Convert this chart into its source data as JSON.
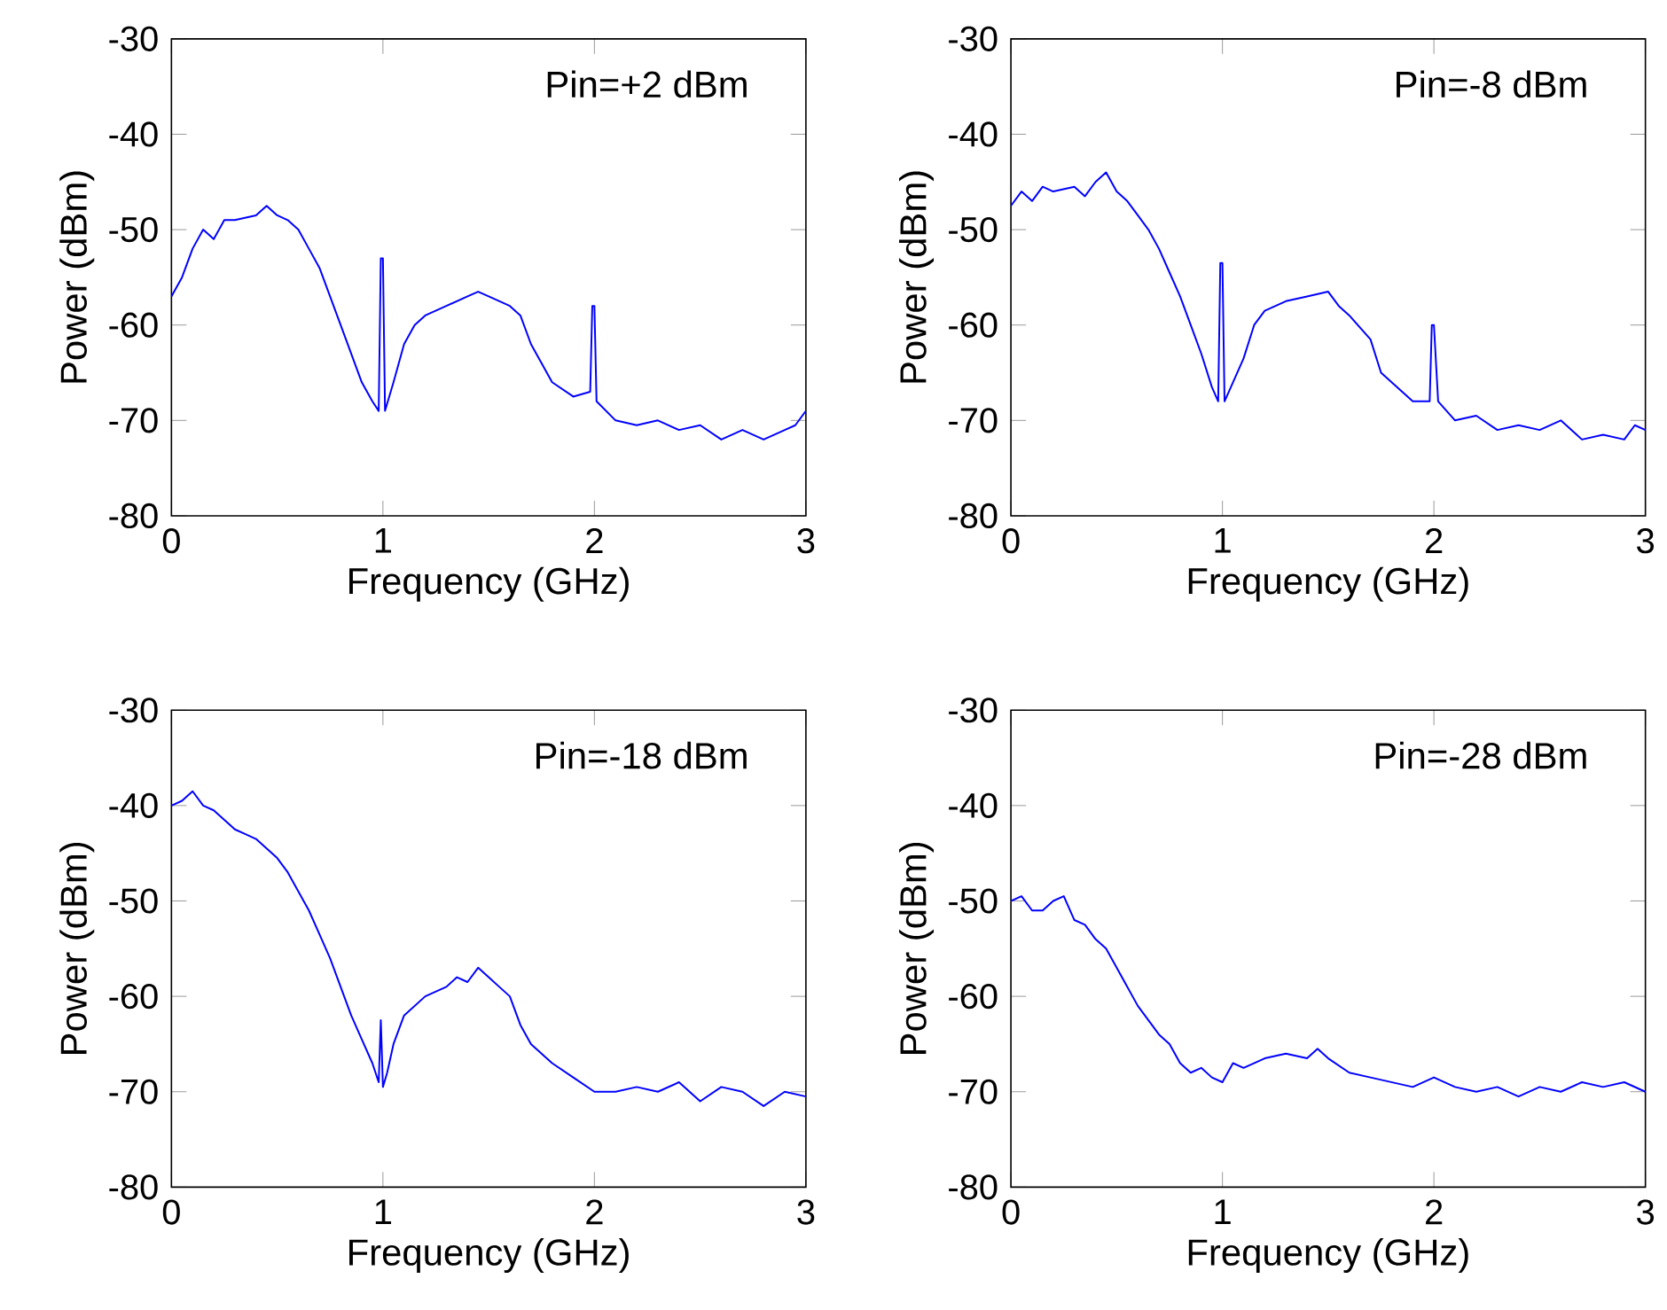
{
  "chart_data": [
    {
      "type": "line",
      "xlabel": "Frequency (GHz)",
      "ylabel": "Power (dBm)",
      "annotations": [
        "Pin=+2 dBm"
      ],
      "color": "#0000ff",
      "xlim": [
        0,
        3
      ],
      "ylim": [
        -80,
        -30
      ],
      "xticks": [
        0,
        1,
        2,
        3
      ],
      "yticks": [
        -80,
        -70,
        -60,
        -50,
        -40,
        -30
      ],
      "x": [
        0,
        0.05,
        0.1,
        0.15,
        0.2,
        0.25,
        0.3,
        0.4,
        0.45,
        0.5,
        0.55,
        0.6,
        0.65,
        0.7,
        0.75,
        0.8,
        0.85,
        0.9,
        0.95,
        0.98,
        0.99,
        1.0,
        1.01,
        1.05,
        1.1,
        1.15,
        1.2,
        1.3,
        1.4,
        1.45,
        1.5,
        1.6,
        1.65,
        1.7,
        1.75,
        1.8,
        1.9,
        1.98,
        1.99,
        2.0,
        2.01,
        2.1,
        2.2,
        2.3,
        2.4,
        2.5,
        2.6,
        2.7,
        2.8,
        2.9,
        2.95,
        3.0
      ],
      "values": [
        -57,
        -55,
        -52,
        -50,
        -51,
        -49,
        -49,
        -48.5,
        -47.5,
        -48.5,
        -49,
        -50,
        -52,
        -54,
        -57,
        -60,
        -63,
        -66,
        -68,
        -69,
        -53,
        -53,
        -69,
        -66,
        -62,
        -60,
        -59,
        -58,
        -57,
        -56.5,
        -57,
        -58,
        -59,
        -62,
        -64,
        -66,
        -67.5,
        -67,
        -58,
        -58,
        -68,
        -70,
        -70.5,
        -70,
        -71,
        -70.5,
        -72,
        -71,
        -72,
        -71,
        -70.5,
        -69
      ]
    },
    {
      "type": "line",
      "xlabel": "Frequency (GHz)",
      "ylabel": "Power (dBm)",
      "annotations": [
        "Pin=-8 dBm"
      ],
      "color": "#0000ff",
      "xlim": [
        0,
        3
      ],
      "ylim": [
        -80,
        -30
      ],
      "xticks": [
        0,
        1,
        2,
        3
      ],
      "yticks": [
        -80,
        -70,
        -60,
        -50,
        -40,
        -30
      ],
      "x": [
        0,
        0.05,
        0.1,
        0.15,
        0.2,
        0.3,
        0.35,
        0.4,
        0.45,
        0.5,
        0.55,
        0.6,
        0.65,
        0.7,
        0.75,
        0.8,
        0.85,
        0.9,
        0.95,
        0.98,
        0.99,
        1.0,
        1.01,
        1.05,
        1.1,
        1.15,
        1.2,
        1.3,
        1.4,
        1.5,
        1.55,
        1.6,
        1.7,
        1.75,
        1.8,
        1.9,
        1.98,
        1.99,
        2.0,
        2.02,
        2.1,
        2.2,
        2.3,
        2.4,
        2.5,
        2.6,
        2.7,
        2.8,
        2.9,
        2.95,
        3.0
      ],
      "values": [
        -47.5,
        -46,
        -47,
        -45.5,
        -46,
        -45.5,
        -46.5,
        -45,
        -44,
        -46,
        -47,
        -48.5,
        -50,
        -52,
        -54.5,
        -57,
        -60,
        -63,
        -66.5,
        -68,
        -53.5,
        -53.5,
        -68,
        -66,
        -63.5,
        -60,
        -58.5,
        -57.5,
        -57,
        -56.5,
        -58,
        -59,
        -61.5,
        -65,
        -66,
        -68,
        -68,
        -60,
        -60,
        -68,
        -70,
        -69.5,
        -71,
        -70.5,
        -71,
        -70,
        -72,
        -71.5,
        -72,
        -70.5,
        -71
      ]
    },
    {
      "type": "line",
      "xlabel": "Frequency (GHz)",
      "ylabel": "Power (dBm)",
      "annotations": [
        "Pin=-18 dBm"
      ],
      "color": "#0000ff",
      "xlim": [
        0,
        3
      ],
      "ylim": [
        -80,
        -30
      ],
      "xticks": [
        0,
        1,
        2,
        3
      ],
      "yticks": [
        -80,
        -70,
        -60,
        -50,
        -40,
        -30
      ],
      "x": [
        0,
        0.05,
        0.1,
        0.15,
        0.2,
        0.25,
        0.3,
        0.35,
        0.4,
        0.45,
        0.5,
        0.55,
        0.6,
        0.65,
        0.7,
        0.75,
        0.8,
        0.85,
        0.9,
        0.95,
        0.98,
        0.99,
        1.0,
        1.02,
        1.05,
        1.1,
        1.15,
        1.2,
        1.3,
        1.35,
        1.4,
        1.45,
        1.5,
        1.55,
        1.6,
        1.65,
        1.7,
        1.8,
        1.9,
        2.0,
        2.1,
        2.2,
        2.3,
        2.4,
        2.5,
        2.6,
        2.7,
        2.8,
        2.9,
        3.0
      ],
      "values": [
        -40,
        -39.5,
        -38.5,
        -40,
        -40.5,
        -41.5,
        -42.5,
        -43,
        -43.5,
        -44.5,
        -45.5,
        -47,
        -49,
        -51,
        -53.5,
        -56,
        -59,
        -62,
        -64.5,
        -67,
        -69,
        -62.5,
        -69.5,
        -68,
        -65,
        -62,
        -61,
        -60,
        -59,
        -58,
        -58.5,
        -57,
        -58,
        -59,
        -60,
        -63,
        -65,
        -67,
        -68.5,
        -70,
        -70,
        -69.5,
        -70,
        -69,
        -71,
        -69.5,
        -70,
        -71.5,
        -70,
        -70.5
      ]
    },
    {
      "type": "line",
      "xlabel": "Frequency (GHz)",
      "ylabel": "Power (dBm)",
      "annotations": [
        "Pin=-28 dBm"
      ],
      "color": "#0000ff",
      "xlim": [
        0,
        3
      ],
      "ylim": [
        -80,
        -30
      ],
      "xticks": [
        0,
        1,
        2,
        3
      ],
      "yticks": [
        -80,
        -70,
        -60,
        -50,
        -40,
        -30
      ],
      "x": [
        0,
        0.05,
        0.1,
        0.15,
        0.2,
        0.25,
        0.3,
        0.35,
        0.4,
        0.45,
        0.5,
        0.55,
        0.6,
        0.65,
        0.7,
        0.75,
        0.8,
        0.85,
        0.9,
        0.95,
        1.0,
        1.05,
        1.1,
        1.2,
        1.3,
        1.4,
        1.45,
        1.5,
        1.6,
        1.7,
        1.8,
        1.9,
        2.0,
        2.1,
        2.2,
        2.3,
        2.4,
        2.5,
        2.6,
        2.7,
        2.8,
        2.9,
        3.0
      ],
      "values": [
        -50,
        -49.5,
        -51,
        -51,
        -50,
        -49.5,
        -52,
        -52.5,
        -54,
        -55,
        -57,
        -59,
        -61,
        -62.5,
        -64,
        -65,
        -67,
        -68,
        -67.5,
        -68.5,
        -69,
        -67,
        -67.5,
        -66.5,
        -66,
        -66.5,
        -65.5,
        -66.5,
        -68,
        -68.5,
        -69,
        -69.5,
        -68.5,
        -69.5,
        -70,
        -69.5,
        -70.5,
        -69.5,
        -70,
        -69,
        -69.5,
        -69,
        -70
      ]
    }
  ]
}
